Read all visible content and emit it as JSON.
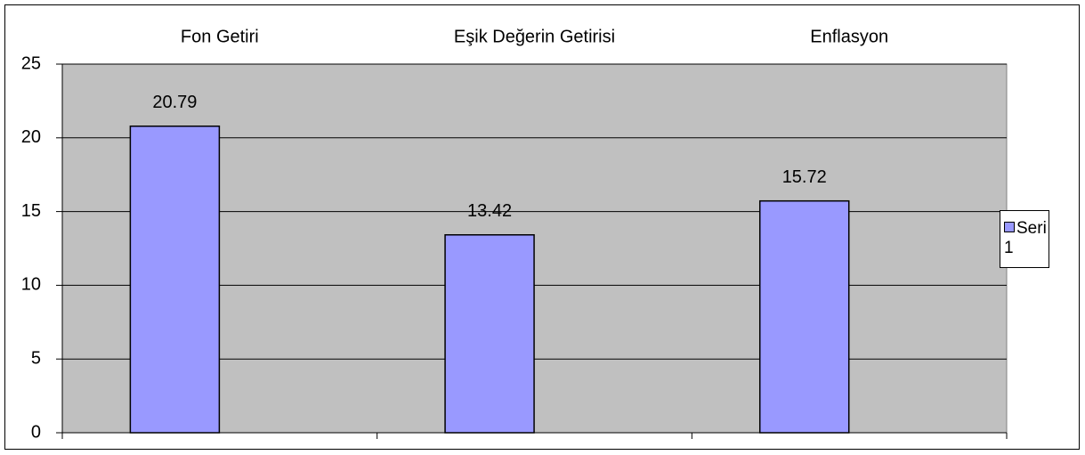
{
  "chart_data": {
    "type": "bar",
    "categories": [
      "Fon Getiri",
      "Eşik Değerin Getirisi",
      "Enflasyon"
    ],
    "series": [
      {
        "name": "Seri 1",
        "color": "#9999ff",
        "values": [
          20.79,
          13.42,
          15.72
        ]
      }
    ],
    "ylim": [
      0,
      25
    ],
    "yticks": [
      0,
      5,
      10,
      15,
      20,
      25
    ],
    "grid": true,
    "legend": "right"
  }
}
